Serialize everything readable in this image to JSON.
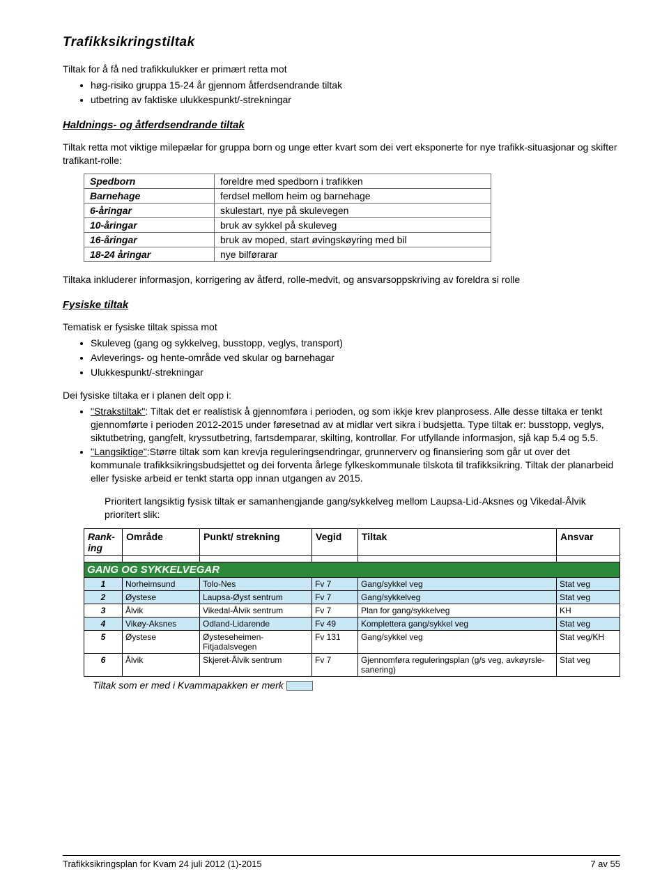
{
  "heading1": "Trafikksikringstiltak",
  "intro_para": "Tiltak for å få ned trafikkulukker er primært retta mot",
  "intro_bullets": [
    "høg-risiko gruppa 15-24 år gjennom åtferdsendrande tiltak",
    "utbetring av faktiske ulukkespunkt/-strekningar"
  ],
  "heading2a": "Haldnings- og åtferdsendrande tiltak",
  "para2": "Tiltak retta mot viktige milepælar for gruppa born og unge etter kvart som dei vert eksponerte for nye trafikk-situasjonar og skifter trafikant-rolle:",
  "kv_rows": [
    {
      "k": "Spedborn",
      "v": "foreldre med spedborn i trafikken"
    },
    {
      "k": "Barnehage",
      "v": "ferdsel mellom heim og barnehage"
    },
    {
      "k": "6-åringar",
      "v": "skulestart, nye på skulevegen"
    },
    {
      "k": "10-åringar",
      "v": "bruk av sykkel på skuleveg"
    },
    {
      "k": "16-åringar",
      "v": "bruk av moped, start øvingskøyring med bil"
    },
    {
      "k": "18-24 åringar",
      "v": "nye bilførarar"
    }
  ],
  "para3": "Tiltaka inkluderer informasjon, korrigering av åtferd, rolle-medvit, og ansvarsoppskriving av foreldra si rolle",
  "heading2b": "Fysiske tiltak",
  "para4": "Tematisk er fysiske tiltak spissa mot",
  "bullets4": [
    "Skuleveg (gang og sykkelveg, busstopp, veglys, transport)",
    "Avleverings- og hente-område ved skular og barnehagar",
    "Ulukkespunkt/-strekningar"
  ],
  "para5": "Dei fysiske tiltaka er i planen delt opp i:",
  "bullets5": [
    {
      "lead": "\"Strakstiltak\"",
      "rest": ": Tiltak det er realistisk å gjennomføra i perioden, og som ikkje krev planprosess. Alle desse tiltaka er tenkt gjennomførte i perioden 2012-2015 under føresetnad av at midlar vert sikra i budsjetta. Type tiltak er: busstopp, veglys, siktutbetring, gangfelt, kryssutbetring, fartsdemparar, skilting, kontrollar. For utfyllande informasjon, sjå kap 5.4 og 5.5."
    },
    {
      "lead": "\"Langsiktige\"",
      "rest": ":Større tiltak som kan krevja reguleringsendringar, grunnerverv og finansiering som går ut over det kommunale trafikksikringsbudsjettet og dei forventa årlege fylkeskommunale tilskota til trafikksikring. Tiltak der planarbeid eller fysiske arbeid er tenkt starta opp innan utgangen av 2015."
    }
  ],
  "para6": "Prioritert langsiktig fysisk tiltak er samanhengjande gang/sykkelveg mellom Laupsa-Lid-Aksnes og Vikedal-Ålvik prioritert slik:",
  "rank_headers": [
    "Rank-ing",
    "Område",
    "Punkt/ strekning",
    "Vegid",
    "Tiltak",
    "Ansvar"
  ],
  "section_title": "GANG OG SYKKELVEGAR",
  "rank_rows": [
    {
      "n": "1",
      "area": "Norheimsund",
      "pt": "Tolo-Nes",
      "veg": "Fv 7",
      "tiltak": "Gang/sykkel veg",
      "ansvar": "Stat veg",
      "hl": true
    },
    {
      "n": "2",
      "area": "Øystese",
      "pt": "Laupsa-Øyst sentrum",
      "veg": "Fv 7",
      "tiltak": "Gang/sykkelveg",
      "ansvar": "Stat veg",
      "hl": true
    },
    {
      "n": "3",
      "area": "Ålvik",
      "pt": "Vikedal-Ålvik sentrum",
      "veg": "Fv 7",
      "tiltak": "Plan for gang/sykkelveg",
      "ansvar": "KH",
      "hl": false
    },
    {
      "n": "4",
      "area": "Vikøy-Aksnes",
      "pt": "Odland-Lidarende",
      "veg": "Fv 49",
      "tiltak": "Komplettera gang/sykkel veg",
      "ansvar": "Stat veg",
      "hl": true
    },
    {
      "n": "5",
      "area": "Øystese",
      "pt": "Øysteseheimen-Fitjadalsvegen",
      "veg": "Fv 131",
      "tiltak": "Gang/sykkel veg",
      "ansvar": "Stat veg/KH",
      "hl": false
    },
    {
      "n": "6",
      "area": "Ålvik",
      "pt": "Skjeret-Ålvik sentrum",
      "veg": "Fv 7",
      "tiltak": "Gjennomføra reguleringsplan (g/s veg, avkøyrsle-sanering)",
      "ansvar": "Stat veg",
      "hl": false
    }
  ],
  "note": "Tiltak som er med i Kvammapakken er merk",
  "footer_left": "Trafikksikringsplan for Kvam 24 juli 2012 (1)-2015",
  "footer_right": "7 av 55",
  "colors": {
    "section_bg": "#2a8a3a",
    "highlight_bg": "#c9e8f5"
  }
}
